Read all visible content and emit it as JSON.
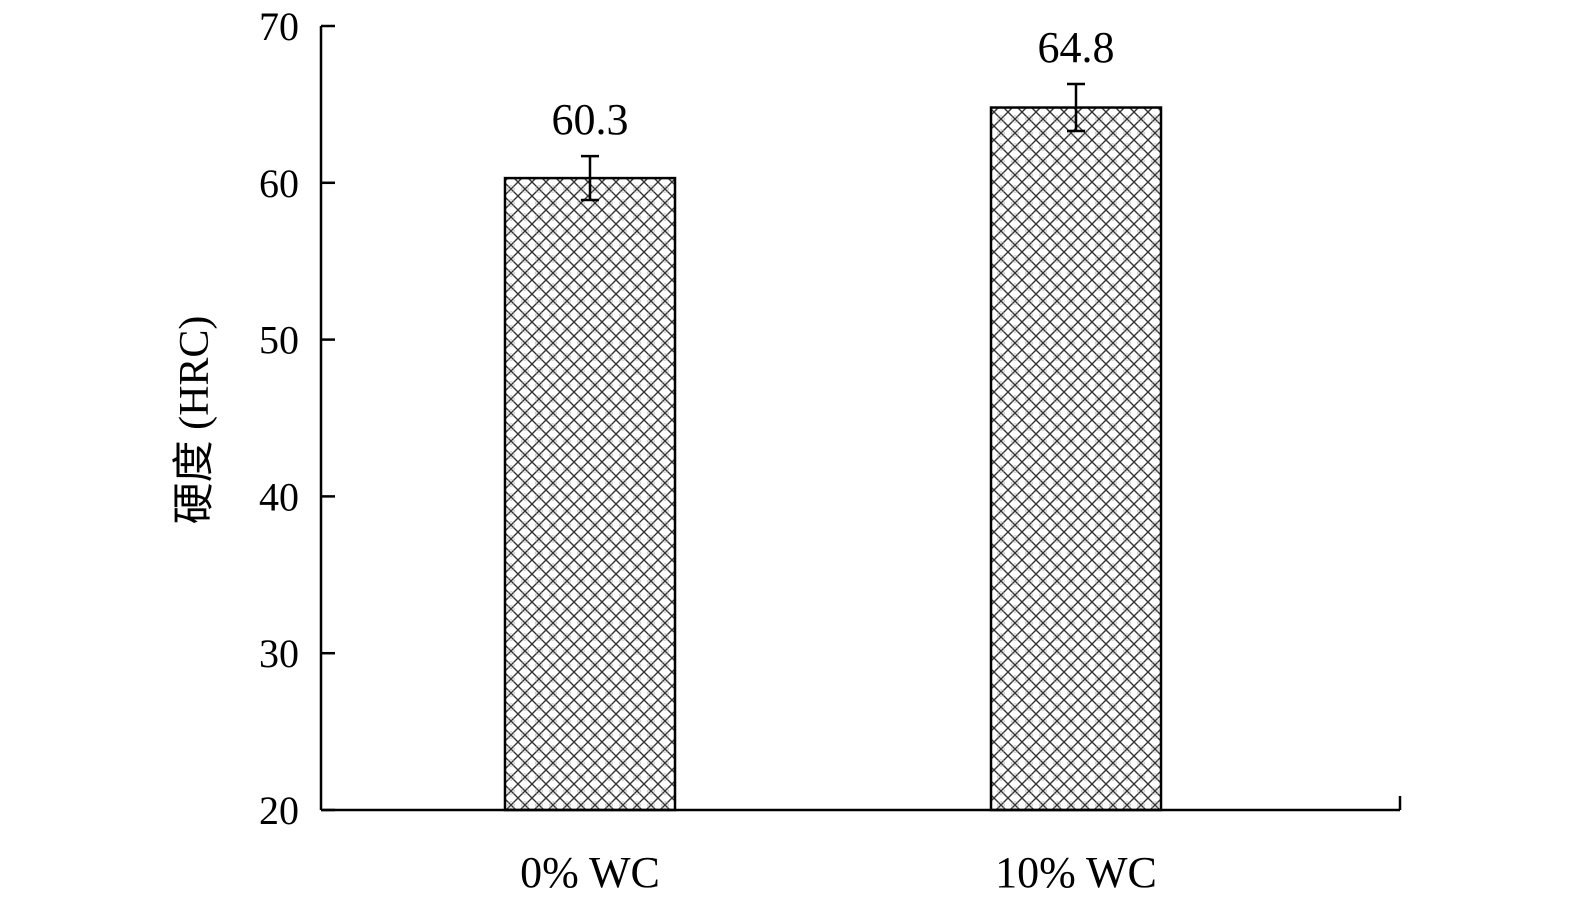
{
  "chart_data": {
    "type": "bar",
    "categories": [
      "0% WC",
      "10% WC"
    ],
    "values": [
      60.3,
      64.8
    ],
    "errors": [
      1.4,
      1.5
    ],
    "data_labels": [
      "60.3",
      "64.8"
    ],
    "ylabel": "硬度 (HRC)",
    "ylim": [
      20,
      70
    ],
    "yticks": [
      20,
      30,
      40,
      50,
      60,
      70
    ],
    "grid": false,
    "legend": "none",
    "bar_fill": "crosshatch",
    "colors": {
      "axis": "#000000",
      "bar_pattern": "#333333",
      "background": "#ffffff"
    }
  }
}
